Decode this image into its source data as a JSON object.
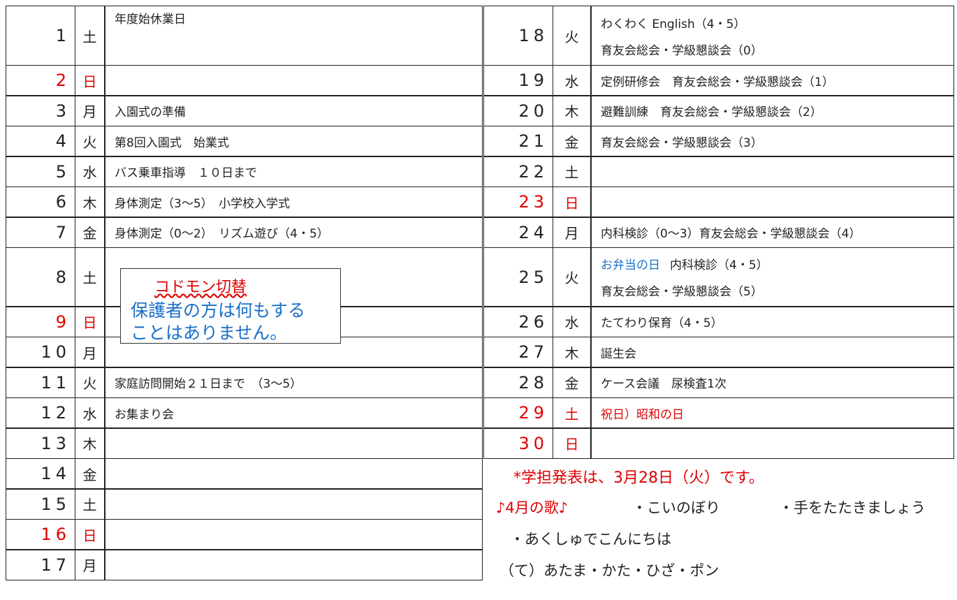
{
  "left_rows": [
    {
      "day": "1",
      "weekday": "土",
      "events": [
        "年度始休業日"
      ]
    },
    {
      "day": "2",
      "weekday": "日",
      "events": [],
      "color": "#e00000"
    },
    {
      "day": "3",
      "weekday": "月",
      "events": [
        "入園式の準備"
      ]
    },
    {
      "day": "4",
      "weekday": "火",
      "events": [
        "第8回入園式　始業式"
      ]
    },
    {
      "day": "5",
      "weekday": "水",
      "events": [
        "バス乗車指導　１０日まで"
      ]
    },
    {
      "day": "6",
      "weekday": "木",
      "events": [
        "身体測定（3～5）　小学校入学式"
      ]
    },
    {
      "day": "7",
      "weekday": "金",
      "events": [
        "身体測定（0～2）　リズム遊び（4・5）"
      ]
    },
    {
      "day": "8",
      "weekday": "土",
      "events": []
    },
    {
      "day": "9",
      "weekday": "日",
      "events": [],
      "color": "#e00000"
    },
    {
      "day": "10",
      "weekday": "月",
      "events": []
    },
    {
      "day": "11",
      "weekday": "火",
      "events": [
        "家庭訪問開始２１日まで　（3～5）"
      ]
    },
    {
      "day": "12",
      "weekday": "水",
      "events": [
        "お集まり会"
      ]
    },
    {
      "day": "13",
      "weekday": "木",
      "events": []
    },
    {
      "day": "14",
      "weekday": "金",
      "events": []
    },
    {
      "day": "15",
      "weekday": "土",
      "events": []
    },
    {
      "day": "16",
      "weekday": "日",
      "events": [],
      "color": "#e00000"
    },
    {
      "day": "17",
      "weekday": "月",
      "events": []
    }
  ],
  "right_rows": [
    {
      "day": "18",
      "weekday": "火",
      "events": [
        "わくわく English（4・5）",
        "育友会総会・学級懇談会（0）"
      ]
    },
    {
      "day": "19",
      "weekday": "水",
      "events": [
        "定例研修会　育友会総会・学級懇談会（1）"
      ]
    },
    {
      "day": "20",
      "weekday": "木",
      "events": [
        "避難訓練　育友会総会・学級懇談会（2）"
      ]
    },
    {
      "day": "21",
      "weekday": "金",
      "events": [
        "育友会総会・学級懇談会（3）"
      ]
    },
    {
      "day": "22",
      "weekday": "土",
      "events": []
    },
    {
      "day": "23",
      "weekday": "日",
      "events": [],
      "color": "#e00000"
    },
    {
      "day": "24",
      "weekday": "月",
      "events": [
        "内科検診（0～3）育友会総会・学級懇談会（4）"
      ]
    },
    {
      "day": "25",
      "weekday": "火",
      "highlight": "お弁当の日",
      "highlight_color": "#1a6fc9",
      "events": [
        "内科検診（4・5）",
        "育友会総会・学級懇談会（5）"
      ]
    },
    {
      "day": "26",
      "weekday": "水",
      "events": [
        "たてわり保育（4・5）"
      ]
    },
    {
      "day": "27",
      "weekday": "木",
      "events": [
        "誕生会"
      ]
    },
    {
      "day": "28",
      "weekday": "金",
      "events": [
        "ケース会議　尿検査1次"
      ]
    },
    {
      "day": "29",
      "weekday": "土",
      "events": [
        "祝日）昭和の日"
      ],
      "color": "#e00000"
    },
    {
      "day": "30",
      "weekday": "日",
      "events": [],
      "color": "#e00000"
    }
  ],
  "box": {
    "title": "コドモン切替",
    "lines": [
      "保護者の方は何もする",
      "ことはありません。"
    ]
  },
  "notice": "*学担発表は、3月28日（火）です。",
  "song": {
    "title": "♪4月の歌♪",
    "items": [
      "・こいのぼり",
      "・手をたたきましょう",
      "・あくしゅでこんにちは",
      "（て）あたま・かた・ひざ・ポン"
    ]
  }
}
